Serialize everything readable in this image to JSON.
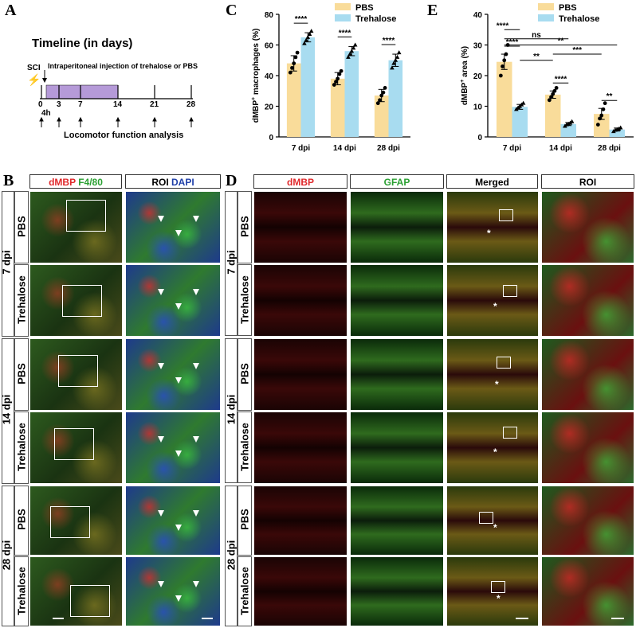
{
  "panel_labels": {
    "a": "A",
    "b": "B",
    "c": "C",
    "d": "D",
    "e": "E"
  },
  "timeline": {
    "title": "Timeline (in days)",
    "sci": "SCI",
    "injection": "Intraperitoneal injection of trehalose or PBS",
    "ticks": [
      "0",
      "3",
      "7",
      "14",
      "21",
      "28"
    ],
    "sub_tick": "4h",
    "analysis": "Locomotor function analysis"
  },
  "panel_b": {
    "header1_red": "dMBP",
    "header1_green": "F4/80",
    "header2_black": "ROI",
    "header2_blue": "DAPI",
    "groups": [
      "7 dpi",
      "14 dpi",
      "28 dpi"
    ],
    "rows": [
      "PBS",
      "Trehalose",
      "PBS",
      "Trehalose",
      "PBS",
      "Trehalose"
    ]
  },
  "panel_d": {
    "headers": [
      "dMBP",
      "GFAP",
      "Merged",
      "ROI"
    ],
    "groups": [
      "7 dpi",
      "14 dpi",
      "28 dpi"
    ],
    "rows": [
      "PBS",
      "Trehalose",
      "PBS",
      "Trehalose",
      "PBS",
      "Trehalose"
    ],
    "star": "*"
  },
  "colors": {
    "pbs": "#f9dc9a",
    "trehalose": "#a8dcf0",
    "red": "#e0282b",
    "green": "#2aa032",
    "blue": "#1f3fa8"
  },
  "chart_data": [
    {
      "type": "bar",
      "panel": "C",
      "categories": [
        "7 dpi",
        "14 dpi",
        "28 dpi"
      ],
      "series": [
        {
          "name": "PBS",
          "values": [
            48,
            38,
            27
          ],
          "errors": [
            5,
            4,
            4
          ],
          "points": [
            [
              42,
              45,
              48,
              52,
              55
            ],
            [
              34,
              36,
              38,
              41,
              43
            ],
            [
              22,
              24,
              27,
              29,
              32
            ]
          ]
        },
        {
          "name": "Trehalose",
          "values": [
            65,
            56,
            50
          ],
          "errors": [
            3,
            3,
            4
          ],
          "points": [
            [
              61,
              63,
              65,
              67,
              69
            ],
            [
              52,
              54,
              56,
              58,
              60
            ],
            [
              45,
              48,
              50,
              52,
              55
            ]
          ]
        }
      ],
      "ylabel": "dMBP+ macrophages (%)",
      "ylabel_main": "dMBP",
      "ylabel_sup": "+",
      "ylabel_rest": " macrophages (%)",
      "ylim": [
        0,
        80
      ],
      "yticks": [
        "0",
        "20",
        "40",
        "60",
        "80"
      ],
      "significance": [
        "****",
        "****",
        "****"
      ],
      "legend_position": "top-right"
    },
    {
      "type": "bar",
      "panel": "E",
      "categories": [
        "7 dpi",
        "14 dpi",
        "28 dpi"
      ],
      "series": [
        {
          "name": "PBS",
          "values": [
            24.5,
            13.8,
            7.5
          ],
          "errors": [
            2.5,
            1.2,
            1.8
          ],
          "points": [
            [
              20,
              23,
              25,
              27,
              30
            ],
            [
              12,
              13,
              14,
              15,
              16
            ],
            [
              4,
              6,
              7,
              9,
              11
            ]
          ]
        },
        {
          "name": "Trehalose",
          "values": [
            9.8,
            4.2,
            2.4
          ],
          "errors": [
            0.8,
            0.5,
            0.5
          ],
          "points": [
            [
              9,
              9.5,
              10,
              10.5,
              11
            ],
            [
              3.5,
              4,
              4.2,
              4.5,
              5
            ],
            [
              1.8,
              2.2,
              2.4,
              2.6,
              3
            ]
          ]
        }
      ],
      "ylabel": "dMBP+ area (%)",
      "ylabel_main": "dMBP",
      "ylabel_sup": "+",
      "ylabel_rest": " area (%)",
      "ylim": [
        0,
        40
      ],
      "yticks": [
        "0",
        "10",
        "20",
        "30",
        "40"
      ],
      "significance": [
        "****",
        "****",
        "**"
      ],
      "comparisons": [
        "****",
        "ns",
        "**",
        "**",
        "***"
      ],
      "legend_position": "top-right"
    }
  ]
}
